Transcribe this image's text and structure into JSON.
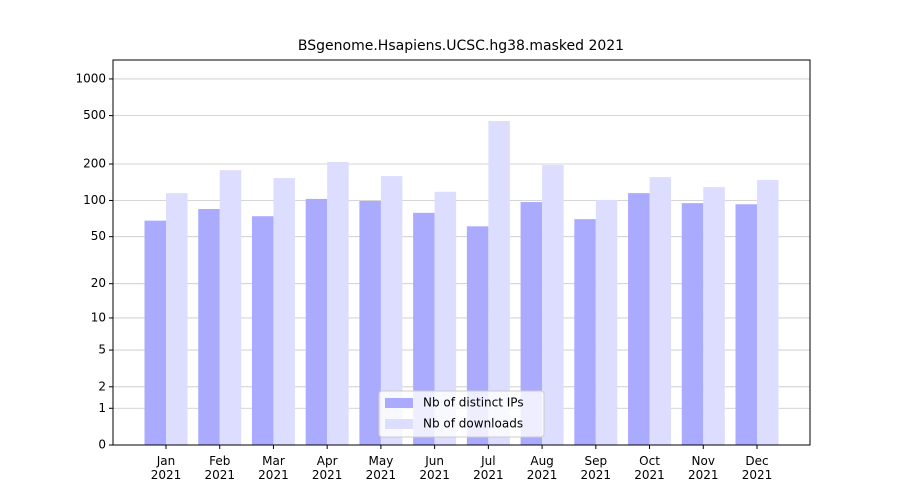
{
  "chart_data": {
    "type": "bar",
    "title": "BSgenome.Hsapiens.UCSC.hg38.masked 2021",
    "categories": [
      "Jan\n2021",
      "Feb\n2021",
      "Mar\n2021",
      "Apr\n2021",
      "May\n2021",
      "Jun\n2021",
      "Jul\n2021",
      "Aug\n2021",
      "Sep\n2021",
      "Oct\n2021",
      "Nov\n2021",
      "Dec\n2021"
    ],
    "series": [
      {
        "name": "Nb of distinct IPs",
        "color": "#aaaaff",
        "values": [
          68,
          85,
          74,
          103,
          99,
          79,
          61,
          97,
          70,
          115,
          95,
          93
        ]
      },
      {
        "name": "Nb of downloads",
        "color": "#ddddff",
        "values": [
          115,
          178,
          153,
          208,
          159,
          118,
          452,
          196,
          101,
          156,
          129,
          148
        ]
      }
    ],
    "y_scale": "log1p",
    "ylim": [
      0,
      1430
    ],
    "yticks": [
      0,
      1,
      2,
      5,
      10,
      20,
      50,
      100,
      200,
      500,
      1000
    ],
    "grid": true,
    "legend": "lower center"
  }
}
